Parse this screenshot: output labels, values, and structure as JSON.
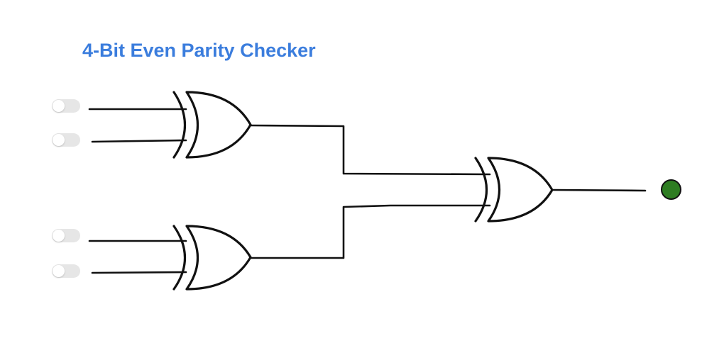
{
  "title": "4-Bit Even Parity Checker",
  "colors": {
    "title": "#3b7ddd",
    "led_on": "#2e7d22",
    "toggle_off": "#e6e6e6",
    "line": "#111111"
  },
  "inputs": [
    {
      "name": "input-1",
      "state": "off"
    },
    {
      "name": "input-2",
      "state": "off"
    },
    {
      "name": "input-3",
      "state": "off"
    },
    {
      "name": "input-4",
      "state": "off"
    }
  ],
  "gates": [
    {
      "name": "xor-gate-1",
      "type": "XOR"
    },
    {
      "name": "xor-gate-2",
      "type": "XOR"
    },
    {
      "name": "xor-gate-3",
      "type": "XOR"
    }
  ],
  "output": {
    "name": "output-led",
    "state": "on"
  }
}
